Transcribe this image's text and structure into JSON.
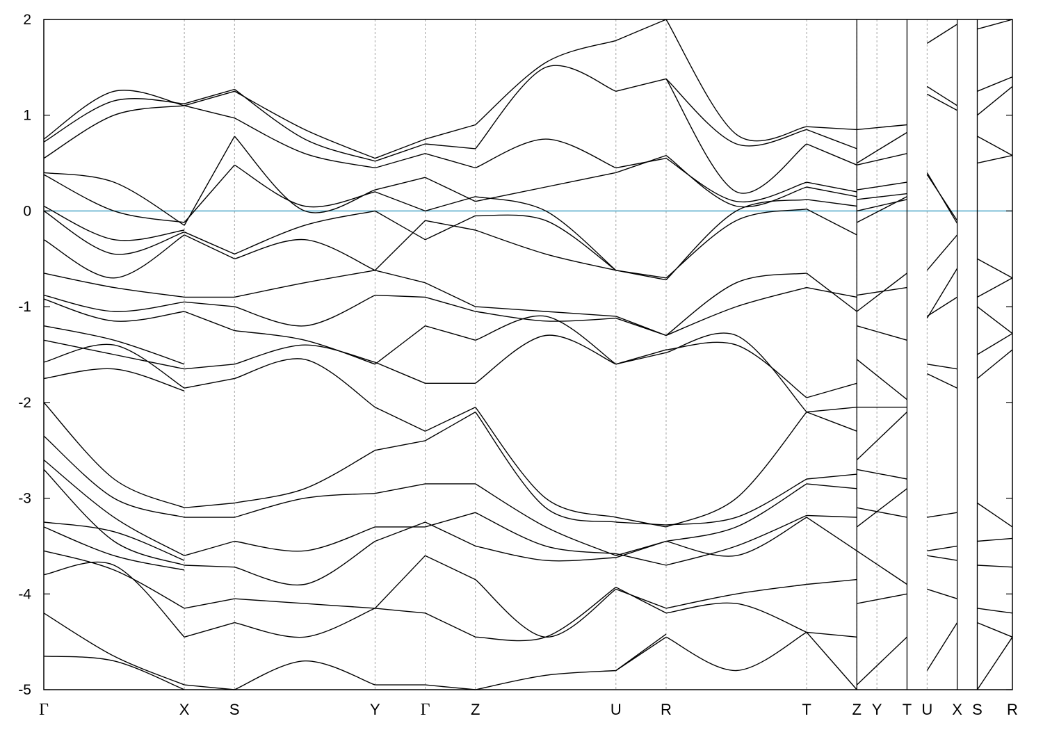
{
  "chart_data": {
    "type": "line",
    "title": "",
    "xlabel": "",
    "ylabel": "",
    "ylim": [
      -5,
      2
    ],
    "yticks": [
      -5,
      -4,
      -3,
      -2,
      -1,
      0,
      1,
      2
    ],
    "ytick_labels": [
      "-5",
      "-4",
      "-3",
      "-2",
      "-1",
      "0",
      "1",
      "2"
    ],
    "xlim": [
      0,
      19.3
    ],
    "high_symmetry_points": [
      {
        "label": "Γ",
        "x": 0.0
      },
      {
        "label": "X",
        "x": 2.8
      },
      {
        "label": "S",
        "x": 3.8
      },
      {
        "label": "Y",
        "x": 6.6
      },
      {
        "label": "Γ",
        "x": 7.6
      },
      {
        "label": "Z",
        "x": 8.6
      },
      {
        "label": "U",
        "x": 11.4
      },
      {
        "label": "R",
        "x": 12.4
      },
      {
        "label": "T",
        "x": 15.2
      },
      {
        "label": "Z",
        "x": 16.2
      },
      {
        "label": "Y",
        "x": 16.6
      },
      {
        "label": "T",
        "x": 17.2
      },
      {
        "label": "U",
        "x": 17.6
      },
      {
        "label": "X",
        "x": 18.2
      },
      {
        "label": "S",
        "x": 18.6
      },
      {
        "label": "R",
        "x": 19.3
      }
    ],
    "path_breaks_after": [
      16.2,
      17.2,
      18.2,
      18.6
    ],
    "fermi_level": {
      "y": 0,
      "color": "#5aaecb"
    },
    "band_color": "#000000",
    "segments": [
      {
        "x": [
          0,
          2.8
        ],
        "bands": [
          [
            0.75,
            1.25,
            1.1
          ],
          [
            0.72,
            1.15,
            1.12
          ],
          [
            0.55,
            1.0,
            1.1
          ],
          [
            0.4,
            0.3,
            -0.15
          ],
          [
            0.38,
            0.0,
            -0.12
          ],
          [
            0.05,
            -0.3,
            -0.2
          ],
          [
            0.0,
            -0.45,
            -0.22
          ],
          [
            -0.3,
            -0.7,
            -0.25
          ],
          [
            -0.65,
            -0.8,
            -0.9
          ],
          [
            -0.88,
            -1.05,
            -0.95
          ],
          [
            -0.92,
            -1.15,
            -1.05
          ],
          [
            -1.2,
            -1.35,
            -1.6
          ],
          [
            -1.35,
            -1.5,
            -1.65
          ],
          [
            -1.58,
            -1.4,
            -1.85
          ],
          [
            -1.75,
            -1.65,
            -1.88
          ],
          [
            -2.0,
            -2.8,
            -3.1
          ],
          [
            -2.35,
            -3.0,
            -3.2
          ],
          [
            -2.6,
            -3.2,
            -3.6
          ],
          [
            -2.7,
            -3.45,
            -3.7
          ],
          [
            -3.25,
            -3.35,
            -3.65
          ],
          [
            -3.3,
            -3.6,
            -3.75
          ],
          [
            -3.55,
            -3.75,
            -4.15
          ],
          [
            -3.8,
            -3.7,
            -4.45
          ],
          [
            -4.2,
            -4.65,
            -4.95
          ],
          [
            -4.65,
            -4.7,
            -5.0
          ]
        ]
      },
      {
        "x": [
          2.8,
          3.8
        ],
        "bands": [
          [
            1.1,
            1.25
          ],
          [
            1.12,
            1.27
          ],
          [
            1.1,
            0.97
          ],
          [
            -0.15,
            0.78
          ],
          [
            -0.12,
            0.48
          ],
          [
            -0.22,
            -0.45
          ],
          [
            -0.25,
            -0.5
          ],
          [
            -0.9,
            -0.9
          ],
          [
            -0.95,
            -1.0
          ],
          [
            -1.05,
            -1.25
          ],
          [
            -1.65,
            -1.6
          ],
          [
            -1.85,
            -1.75
          ],
          [
            -3.1,
            -3.05
          ],
          [
            -3.2,
            -3.2
          ],
          [
            -3.6,
            -3.45
          ],
          [
            -3.7,
            -3.72
          ],
          [
            -4.15,
            -4.05
          ],
          [
            -4.45,
            -4.3
          ],
          [
            -4.95,
            -5.0
          ]
        ]
      },
      {
        "x": [
          3.8,
          6.6
        ],
        "bands": [
          [
            1.25,
            0.85,
            0.55
          ],
          [
            1.27,
            0.75,
            0.52
          ],
          [
            0.97,
            0.6,
            0.45
          ],
          [
            0.78,
            0.0,
            0.22
          ],
          [
            0.48,
            0.05,
            0.2
          ],
          [
            -0.45,
            -0.15,
            -0.0
          ],
          [
            -0.5,
            -0.3,
            -0.62
          ],
          [
            -0.9,
            -0.75,
            -0.62
          ],
          [
            -1.0,
            -1.2,
            -0.88
          ],
          [
            -1.25,
            -1.35,
            -1.6
          ],
          [
            -1.6,
            -1.4,
            -1.58
          ],
          [
            -1.75,
            -1.55,
            -2.05
          ],
          [
            -3.05,
            -2.9,
            -2.5
          ],
          [
            -3.2,
            -3.0,
            -2.95
          ],
          [
            -3.45,
            -3.55,
            -3.3
          ],
          [
            -3.72,
            -3.9,
            -3.45
          ],
          [
            -4.05,
            -4.1,
            -4.15
          ],
          [
            -4.3,
            -4.45,
            -4.15
          ],
          [
            -5.0,
            -4.7,
            -4.95
          ]
        ]
      },
      {
        "x": [
          6.6,
          7.6
        ],
        "bands": [
          [
            0.55,
            0.75
          ],
          [
            0.52,
            0.7
          ],
          [
            0.45,
            0.6
          ],
          [
            0.22,
            0.35
          ],
          [
            0.2,
            0.0
          ],
          [
            -0.0,
            -0.3
          ],
          [
            -0.62,
            -0.1
          ],
          [
            -0.62,
            -0.75
          ],
          [
            -0.88,
            -0.9
          ],
          [
            -1.6,
            -1.2
          ],
          [
            -1.58,
            -1.8
          ],
          [
            -2.05,
            -2.3
          ],
          [
            -2.5,
            -2.4
          ],
          [
            -2.95,
            -2.85
          ],
          [
            -3.3,
            -3.3
          ],
          [
            -3.45,
            -3.25
          ],
          [
            -4.15,
            -3.6
          ],
          [
            -4.15,
            -4.2
          ],
          [
            -4.95,
            -4.95
          ]
        ]
      },
      {
        "x": [
          7.6,
          8.6
        ],
        "bands": [
          [
            0.75,
            0.9
          ],
          [
            0.7,
            0.65
          ],
          [
            0.6,
            0.45
          ],
          [
            0.35,
            0.1
          ],
          [
            0.0,
            0.15
          ],
          [
            -0.3,
            -0.05
          ],
          [
            -0.1,
            -0.2
          ],
          [
            -0.75,
            -1.0
          ],
          [
            -0.9,
            -1.05
          ],
          [
            -1.2,
            -1.35
          ],
          [
            -1.8,
            -1.8
          ],
          [
            -2.3,
            -2.05
          ],
          [
            -2.4,
            -2.1
          ],
          [
            -2.85,
            -2.85
          ],
          [
            -3.3,
            -3.15
          ],
          [
            -3.25,
            -3.5
          ],
          [
            -3.6,
            -3.85
          ],
          [
            -4.2,
            -4.45
          ],
          [
            -4.95,
            -5.0
          ]
        ]
      },
      {
        "x": [
          8.6,
          11.4
        ],
        "bands": [
          [
            0.9,
            1.55,
            1.78
          ],
          [
            0.65,
            1.5,
            1.25
          ],
          [
            0.45,
            0.75,
            0.45
          ],
          [
            0.1,
            0.25,
            0.4
          ],
          [
            0.15,
            0.0,
            -0.62
          ],
          [
            -0.05,
            -0.1,
            -0.62
          ],
          [
            -0.2,
            -0.45,
            -0.62
          ],
          [
            -1.0,
            -1.05,
            -1.1
          ],
          [
            -1.05,
            -1.15,
            -1.12
          ],
          [
            -1.35,
            -1.1,
            -1.6
          ],
          [
            -1.8,
            -1.3,
            -1.6
          ],
          [
            -2.05,
            -3.0,
            -3.2
          ],
          [
            -2.1,
            -3.1,
            -3.25
          ],
          [
            -2.85,
            -3.3,
            -3.6
          ],
          [
            -3.15,
            -3.5,
            -3.58
          ],
          [
            -3.5,
            -3.65,
            -3.62
          ],
          [
            -3.85,
            -4.45,
            -3.95
          ],
          [
            -4.45,
            -4.45,
            -3.93
          ],
          [
            -5.0,
            -4.85,
            -4.8
          ]
        ]
      },
      {
        "x": [
          11.4,
          12.4
        ],
        "bands": [
          [
            1.78,
            2.0
          ],
          [
            1.25,
            1.38
          ],
          [
            0.45,
            0.55
          ],
          [
            0.4,
            0.58
          ],
          [
            -0.62,
            -0.7
          ],
          [
            -0.62,
            -0.72
          ],
          [
            -1.1,
            -1.3
          ],
          [
            -1.12,
            -1.3
          ],
          [
            -1.6,
            -1.45
          ],
          [
            -1.6,
            -1.48
          ],
          [
            -3.2,
            -3.3
          ],
          [
            -3.25,
            -3.28
          ],
          [
            -3.6,
            -3.45
          ],
          [
            -3.58,
            -3.7
          ],
          [
            -3.62,
            -3.45
          ],
          [
            -3.95,
            -4.15
          ],
          [
            -3.93,
            -4.2
          ],
          [
            -4.8,
            -4.45
          ],
          [
            -4.8,
            -4.42
          ]
        ]
      },
      {
        "x": [
          12.4,
          15.2
        ],
        "bands": [
          [
            2.0,
            0.8,
            0.88
          ],
          [
            1.38,
            0.7,
            0.85
          ],
          [
            1.38,
            0.2,
            0.7
          ],
          [
            0.55,
            0.1,
            0.3
          ],
          [
            0.58,
            0.05,
            0.25
          ],
          [
            -0.7,
            -0.1,
            0.02
          ],
          [
            -0.72,
            0.0,
            0.12
          ],
          [
            -1.3,
            -0.75,
            -0.65
          ],
          [
            -1.3,
            -1.0,
            -0.8
          ],
          [
            -1.45,
            -1.4,
            -1.95
          ],
          [
            -1.48,
            -1.3,
            -2.1
          ],
          [
            -3.3,
            -3.0,
            -2.1
          ],
          [
            -3.28,
            -3.2,
            -2.8
          ],
          [
            -3.45,
            -3.3,
            -2.85
          ],
          [
            -3.7,
            -3.5,
            -3.18
          ],
          [
            -3.45,
            -3.6,
            -3.2
          ],
          [
            -4.15,
            -4.0,
            -3.9
          ],
          [
            -4.2,
            -4.1,
            -4.4
          ],
          [
            -4.45,
            -4.8,
            -4.4
          ]
        ]
      },
      {
        "x": [
          15.2,
          16.2
        ],
        "bands": [
          [
            0.88,
            0.85
          ],
          [
            0.85,
            0.65
          ],
          [
            0.7,
            0.48
          ],
          [
            0.3,
            0.2
          ],
          [
            0.25,
            0.15
          ],
          [
            0.12,
            0.05
          ],
          [
            0.02,
            -0.25
          ],
          [
            -0.65,
            -1.05
          ],
          [
            -0.8,
            -0.9
          ],
          [
            -1.95,
            -1.8
          ],
          [
            -2.1,
            -2.3
          ],
          [
            -2.1,
            -2.05
          ],
          [
            -2.8,
            -2.75
          ],
          [
            -2.85,
            -2.9
          ],
          [
            -3.18,
            -3.2
          ],
          [
            -3.2,
            -3.55
          ],
          [
            -3.9,
            -3.85
          ],
          [
            -4.4,
            -4.45
          ],
          [
            -4.4,
            -5.0
          ]
        ]
      },
      {
        "x": [
          16.2,
          17.2
        ],
        "bands": [
          [
            0.85,
            0.9
          ],
          [
            0.5,
            0.82
          ],
          [
            0.48,
            0.6
          ],
          [
            0.22,
            0.3
          ],
          [
            0.12,
            0.18
          ],
          [
            -0.12,
            0.15
          ],
          [
            0.0,
            0.12
          ],
          [
            -0.88,
            -0.8
          ],
          [
            -1.05,
            -0.65
          ],
          [
            -1.2,
            -1.35
          ],
          [
            -1.55,
            -1.97
          ],
          [
            -2.05,
            -2.05
          ],
          [
            -2.6,
            -2.1
          ],
          [
            -2.7,
            -2.8
          ],
          [
            -3.1,
            -3.2
          ],
          [
            -3.3,
            -2.9
          ],
          [
            -3.55,
            -3.9
          ],
          [
            -4.1,
            -4.0
          ],
          [
            -4.95,
            -4.45
          ]
        ]
      },
      {
        "x": [
          17.6,
          18.2
        ],
        "bands": [
          [
            1.75,
            1.95
          ],
          [
            1.3,
            1.1
          ],
          [
            1.22,
            1.05
          ],
          [
            0.4,
            -0.13
          ],
          [
            0.38,
            -0.1
          ],
          [
            -0.62,
            -0.25
          ],
          [
            -1.1,
            -0.9
          ],
          [
            -1.12,
            -0.6
          ],
          [
            -1.6,
            -1.65
          ],
          [
            -1.7,
            -1.85
          ],
          [
            -3.2,
            -3.15
          ],
          [
            -3.55,
            -3.5
          ],
          [
            -3.6,
            -3.65
          ],
          [
            -3.95,
            -4.05
          ],
          [
            -4.8,
            -4.3
          ]
        ]
      },
      {
        "x": [
          18.6,
          19.3
        ],
        "bands": [
          [
            1.9,
            2.0
          ],
          [
            1.25,
            1.4
          ],
          [
            1.0,
            1.3
          ],
          [
            0.78,
            0.58
          ],
          [
            0.5,
            0.58
          ],
          [
            -0.5,
            -0.7
          ],
          [
            -0.9,
            -0.7
          ],
          [
            -1.0,
            -1.28
          ],
          [
            -1.5,
            -1.28
          ],
          [
            -1.75,
            -1.45
          ],
          [
            -3.05,
            -3.3
          ],
          [
            -3.45,
            -3.42
          ],
          [
            -3.7,
            -3.72
          ],
          [
            -4.15,
            -4.2
          ],
          [
            -4.3,
            -4.45
          ],
          [
            -5.0,
            -4.45
          ]
        ]
      }
    ]
  }
}
